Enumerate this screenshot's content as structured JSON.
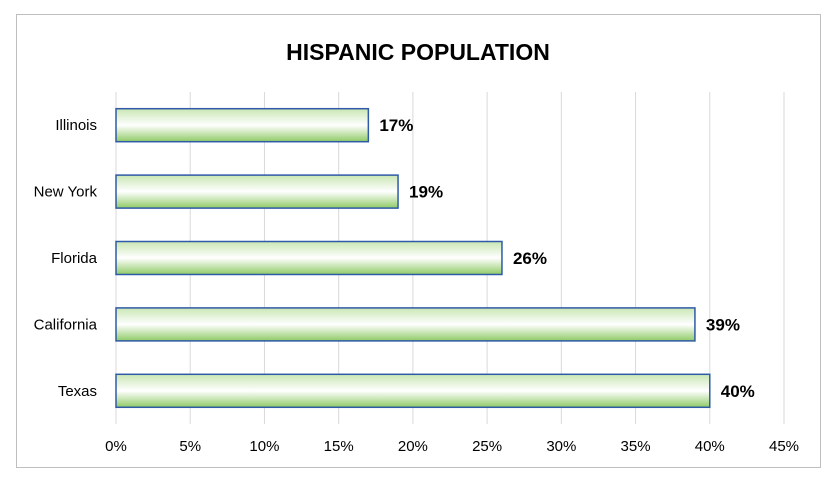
{
  "chart_data": {
    "type": "bar",
    "orientation": "horizontal",
    "title": "HISPANIC POPULATION",
    "categories": [
      "Illinois",
      "New York",
      "Florida",
      "California",
      "Texas"
    ],
    "values": [
      17,
      19,
      26,
      39,
      40
    ],
    "data_labels": [
      "17%",
      "19%",
      "26%",
      "39%",
      "40%"
    ],
    "x_ticks": [
      "0%",
      "5%",
      "10%",
      "15%",
      "20%",
      "25%",
      "30%",
      "35%",
      "40%",
      "45%"
    ],
    "xlim": [
      0,
      45
    ],
    "xlabel": "",
    "ylabel": "",
    "grid": true,
    "legend": "none",
    "colors": {
      "bar_fill_edge": "#c9e6b3",
      "bar_fill_mid": "#8fca66",
      "bar_fill_light": "#ffffff",
      "bar_border": "#2f5aa8",
      "gridline": "#d9d9d9",
      "frame": "#bfbfbf"
    }
  }
}
